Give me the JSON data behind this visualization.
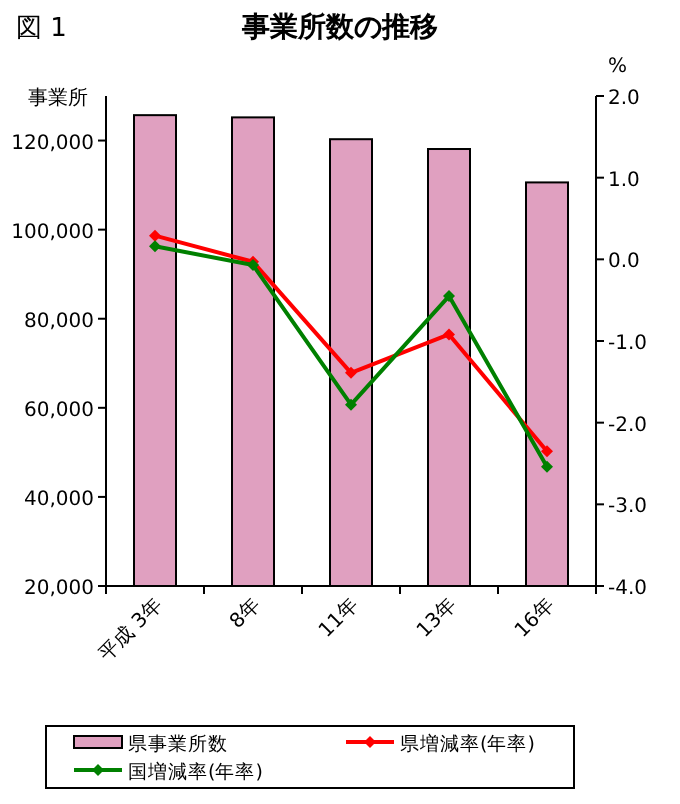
{
  "chart_data": {
    "type": "bar",
    "title": "事業所数の推移",
    "annotations": [
      "図 1"
    ],
    "ylabel": "事業所",
    "y2label": "%",
    "categories": [
      "平成 3年",
      "8年",
      "11年",
      "13年",
      "16年"
    ],
    "series": [
      {
        "name": "県事業所数",
        "color": "#e0a0c0",
        "values": [
          125700,
          125200,
          120300,
          118100,
          110600
        ]
      },
      {
        "name": "県増減率(年率)",
        "type": "line",
        "axis": "y2",
        "color": "#ff0000",
        "values": [
          0.29,
          -0.03,
          -1.39,
          -0.92,
          -2.35
        ]
      },
      {
        "name": "国増減率(年率)",
        "type": "line",
        "axis": "y2",
        "color": "#008000",
        "values": [
          0.16,
          -0.07,
          -1.78,
          -0.45,
          -2.54
        ]
      }
    ],
    "ylim": [
      20000,
      130000
    ],
    "yticks": [
      {
        "value": 20000,
        "label": "20,000"
      },
      {
        "value": 40000,
        "label": "40,000"
      },
      {
        "value": 60000,
        "label": "60,000"
      },
      {
        "value": 80000,
        "label": "80,000"
      },
      {
        "value": 100000,
        "label": "100,000"
      },
      {
        "value": 120000,
        "label": "120,000"
      }
    ],
    "y2lim": [
      -4,
      2
    ],
    "y2ticks": [
      {
        "value": -4,
        "label": "-4.0"
      },
      {
        "value": -3,
        "label": "-3.0"
      },
      {
        "value": -2,
        "label": "-2.0"
      },
      {
        "value": -1,
        "label": "-1.0"
      },
      {
        "value": 0,
        "label": "0.0"
      },
      {
        "value": 1,
        "label": "1.0"
      },
      {
        "value": 2,
        "label": "2.0"
      }
    ],
    "grid": false,
    "legend": "bottom",
    "marker": "diamond",
    "line_style": "solid"
  }
}
